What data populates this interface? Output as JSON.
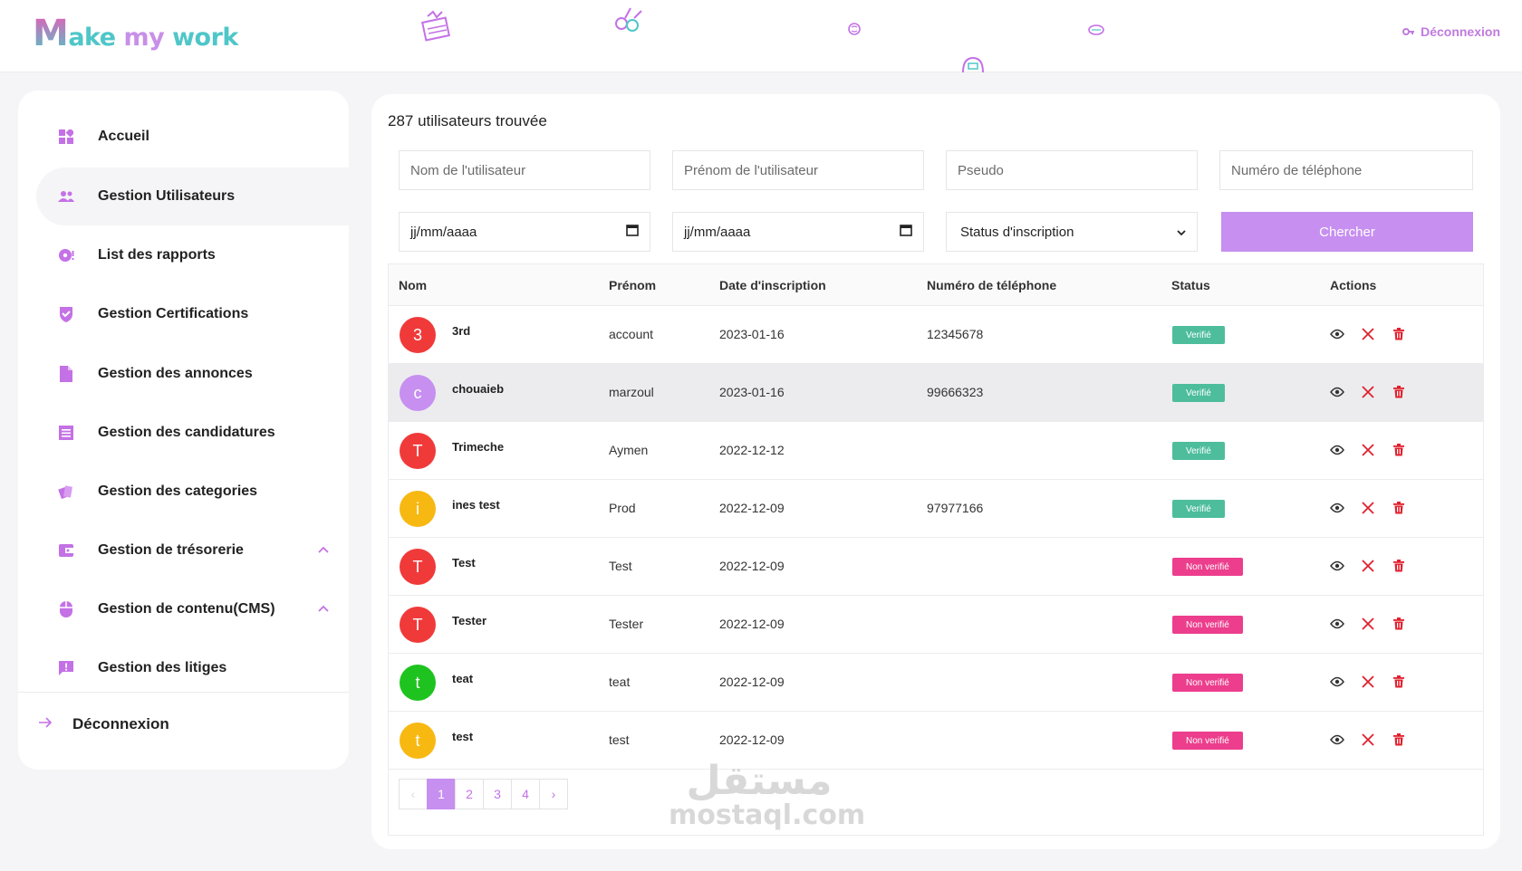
{
  "header": {
    "logo_first": "M",
    "logo_part1": "ake ",
    "logo_part2": "my",
    "logo_part3": " work",
    "logout": "Déconnexion"
  },
  "sidebar": {
    "items": [
      {
        "label": "Accueil",
        "icon": "dashboard-icon"
      },
      {
        "label": "Gestion Utilisateurs",
        "icon": "users-icon"
      },
      {
        "label": "List des rapports",
        "icon": "report-icon"
      },
      {
        "label": "Gestion Certifications",
        "icon": "shield-check-icon"
      },
      {
        "label": "Gestion des annonces",
        "icon": "document-icon"
      },
      {
        "label": "Gestion des candidatures",
        "icon": "list-icon"
      },
      {
        "label": "Gestion des categories",
        "icon": "category-icon"
      },
      {
        "label": "Gestion de trésorerie",
        "icon": "wallet-icon"
      },
      {
        "label": "Gestion de contenu(CMS)",
        "icon": "mouse-icon"
      },
      {
        "label": "Gestion des litiges",
        "icon": "alert-message-icon"
      }
    ],
    "logout": "Déconnexion"
  },
  "main": {
    "count": "287 utilisateurs trouvée",
    "filters": {
      "nom_placeholder": "Nom de l'utilisateur",
      "prenom_placeholder": "Prénom de l'utilisateur",
      "pseudo_placeholder": "Pseudo",
      "phone_placeholder": "Numéro de téléphone",
      "date_from": "jj/mm/aaaa",
      "date_to": "jj/mm/aaaa",
      "status_select": "Status d'inscription",
      "search_button": "Chercher"
    },
    "columns": [
      "Nom",
      "Prénom",
      "Date d'inscription",
      "Numéro de téléphone",
      "Status",
      "Actions"
    ],
    "rows": [
      {
        "initial": "3",
        "color": "#f03a3a",
        "nom": "3rd",
        "prenom": "account",
        "date": "2023-01-16",
        "phone": "12345678",
        "status": "Verifié",
        "verified": true
      },
      {
        "initial": "c",
        "color": "#c68ff0",
        "nom": "chouaieb",
        "prenom": "marzoul",
        "date": "2023-01-16",
        "phone": "99666323",
        "status": "Verifié",
        "verified": true
      },
      {
        "initial": "T",
        "color": "#f03a3a",
        "nom": "Trimeche",
        "prenom": "Aymen",
        "date": "2022-12-12",
        "phone": "",
        "status": "Verifié",
        "verified": true
      },
      {
        "initial": "i",
        "color": "#f7b812",
        "nom": "ines test",
        "prenom": "Prod",
        "date": "2022-12-09",
        "phone": "97977166",
        "status": "Verifié",
        "verified": true
      },
      {
        "initial": "T",
        "color": "#f03a3a",
        "nom": "Test",
        "prenom": "Test",
        "date": "2022-12-09",
        "phone": "",
        "status": "Non verifié",
        "verified": false
      },
      {
        "initial": "T",
        "color": "#f03a3a",
        "nom": "Tester",
        "prenom": "Tester",
        "date": "2022-12-09",
        "phone": "",
        "status": "Non verifié",
        "verified": false
      },
      {
        "initial": "t",
        "color": "#1fc31f",
        "nom": "teat",
        "prenom": "teat",
        "date": "2022-12-09",
        "phone": "",
        "status": "Non verifié",
        "verified": false
      },
      {
        "initial": "t",
        "color": "#f7b812",
        "nom": "test",
        "prenom": "test",
        "date": "2022-12-09",
        "phone": "",
        "status": "Non verifié",
        "verified": false
      }
    ],
    "pagination": {
      "prev": "‹",
      "pages": [
        "1",
        "2",
        "3",
        "4"
      ],
      "next": "›",
      "current": "1"
    }
  },
  "watermark": {
    "arabic": "مستقل",
    "latin": "mostaql.com"
  },
  "colors": {
    "accent": "#c68ff0",
    "verified": "#4dbd9c",
    "unverified": "#ec3e8d",
    "danger": "#e0202e"
  }
}
